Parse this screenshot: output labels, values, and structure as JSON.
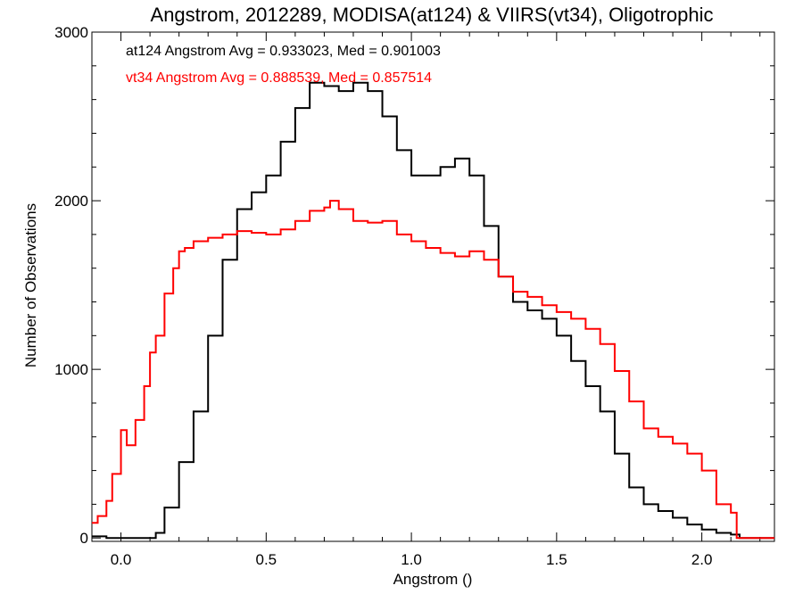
{
  "chart_data": {
    "type": "line",
    "title": "Angstrom, 2012289, MODISA(at124) & VIIRS(vt34), Oligotrophic",
    "xlabel": "Angstrom ()",
    "ylabel": "Number of Observations",
    "xlim": [
      -0.1,
      2.25
    ],
    "ylim": [
      -20,
      3000
    ],
    "xticks": [
      0.0,
      0.5,
      1.0,
      1.5,
      2.0
    ],
    "xtick_labels": [
      "0.0",
      "0.5",
      "1.0",
      "1.5",
      "2.0"
    ],
    "yticks": [
      0,
      1000,
      2000,
      3000
    ],
    "ytick_labels": [
      "0",
      "1000",
      "2000",
      "3000"
    ],
    "grid": false,
    "legend_position": "top-left",
    "annotations": [
      {
        "text": "at124 Angstrom Avg = 0.933023, Med = 0.901003",
        "color": "#000000"
      },
      {
        "text": "vt34 Angstrom Avg = 0.888539, Med = 0.857514",
        "color": "#ff0000"
      }
    ],
    "series": [
      {
        "color": "#000000",
        "step": true,
        "x": [
          -0.1,
          -0.05,
          0.0,
          0.05,
          0.1,
          0.12,
          0.15,
          0.2,
          0.25,
          0.3,
          0.35,
          0.4,
          0.45,
          0.5,
          0.55,
          0.6,
          0.65,
          0.7,
          0.75,
          0.8,
          0.85,
          0.9,
          0.95,
          1.0,
          1.05,
          1.1,
          1.15,
          1.2,
          1.25,
          1.3,
          1.35,
          1.4,
          1.45,
          1.5,
          1.55,
          1.6,
          1.65,
          1.7,
          1.75,
          1.8,
          1.85,
          1.9,
          1.95,
          2.0,
          2.05,
          2.1,
          2.13,
          2.15,
          2.25
        ],
        "y": [
          10,
          0,
          0,
          0,
          0,
          30,
          180,
          450,
          750,
          1200,
          1650,
          1950,
          2050,
          2150,
          2350,
          2550,
          2700,
          2680,
          2650,
          2700,
          2650,
          2500,
          2300,
          2150,
          2150,
          2200,
          2250,
          2150,
          1850,
          1550,
          1400,
          1350,
          1300,
          1200,
          1050,
          900,
          750,
          500,
          300,
          200,
          160,
          120,
          80,
          50,
          30,
          20,
          0,
          0,
          0
        ]
      },
      {
        "color": "#ff0000",
        "step": true,
        "x": [
          -0.1,
          -0.08,
          -0.05,
          -0.03,
          0.0,
          0.02,
          0.05,
          0.08,
          0.1,
          0.12,
          0.15,
          0.18,
          0.2,
          0.22,
          0.25,
          0.3,
          0.35,
          0.4,
          0.45,
          0.5,
          0.55,
          0.6,
          0.65,
          0.7,
          0.72,
          0.75,
          0.8,
          0.85,
          0.9,
          0.95,
          1.0,
          1.05,
          1.1,
          1.15,
          1.2,
          1.25,
          1.3,
          1.35,
          1.4,
          1.45,
          1.5,
          1.55,
          1.6,
          1.65,
          1.7,
          1.75,
          1.8,
          1.85,
          1.9,
          1.95,
          2.0,
          2.05,
          2.1,
          2.12,
          2.13,
          2.15,
          2.25
        ],
        "y": [
          90,
          130,
          220,
          380,
          640,
          550,
          700,
          900,
          1100,
          1200,
          1450,
          1600,
          1700,
          1720,
          1760,
          1780,
          1800,
          1820,
          1810,
          1800,
          1830,
          1880,
          1940,
          1960,
          2000,
          1950,
          1880,
          1870,
          1880,
          1800,
          1760,
          1720,
          1690,
          1670,
          1700,
          1650,
          1550,
          1460,
          1430,
          1380,
          1340,
          1300,
          1240,
          1150,
          990,
          810,
          650,
          600,
          560,
          500,
          400,
          200,
          150,
          0,
          0,
          0,
          0
        ]
      }
    ]
  }
}
